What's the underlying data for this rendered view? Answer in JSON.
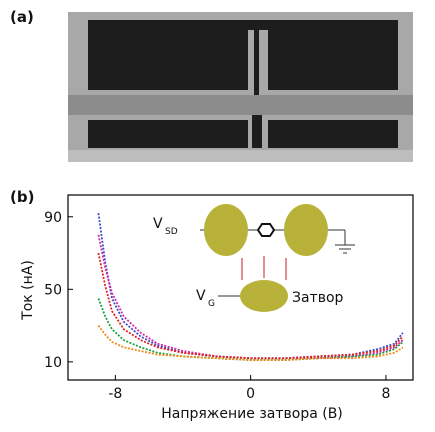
{
  "panel_a": {
    "label": "(a)"
  },
  "chart_data": {
    "type": "line",
    "panel_label": "(b)",
    "x_label": "Напряжение затвора (В)",
    "y_label": "Ток (нА)",
    "inset": {
      "vsd": "V",
      "vsd_sub": "SD",
      "vg": "V",
      "vg_sub": "G",
      "gate": "Затвор"
    },
    "xlim": [
      -10.8,
      9.6
    ],
    "ylim": [
      0,
      102
    ],
    "xticks": [
      -8,
      0,
      8
    ],
    "yticks": [
      10,
      50,
      90
    ],
    "x": [
      -9,
      -8.6,
      -8.2,
      -7.5,
      -6.5,
      -5.5,
      -4,
      -2,
      0,
      2,
      4,
      6,
      7.5,
      8.5,
      9
    ],
    "series": [
      {
        "color": "#3a4fd0",
        "values": [
          92,
          65,
          45,
          32,
          24,
          19,
          15,
          13,
          12,
          12,
          13,
          14,
          17,
          20,
          26
        ]
      },
      {
        "color": "#d02aa8",
        "values": [
          80,
          62,
          48,
          35,
          26,
          20,
          16,
          13,
          12,
          12,
          12,
          13,
          15,
          18,
          22
        ]
      },
      {
        "color": "#e02020",
        "values": [
          70,
          52,
          38,
          28,
          22,
          18,
          15,
          13,
          12,
          12,
          13,
          14,
          16,
          19,
          24
        ]
      },
      {
        "color": "#1fa040",
        "values": [
          45,
          35,
          28,
          22,
          18,
          15,
          13,
          12,
          11,
          11,
          12,
          13,
          14,
          17,
          21
        ]
      },
      {
        "color": "#f08a1a",
        "values": [
          30,
          25,
          21,
          18,
          16,
          14,
          13,
          12,
          11,
          11,
          12,
          12,
          13,
          15,
          18
        ]
      }
    ]
  }
}
